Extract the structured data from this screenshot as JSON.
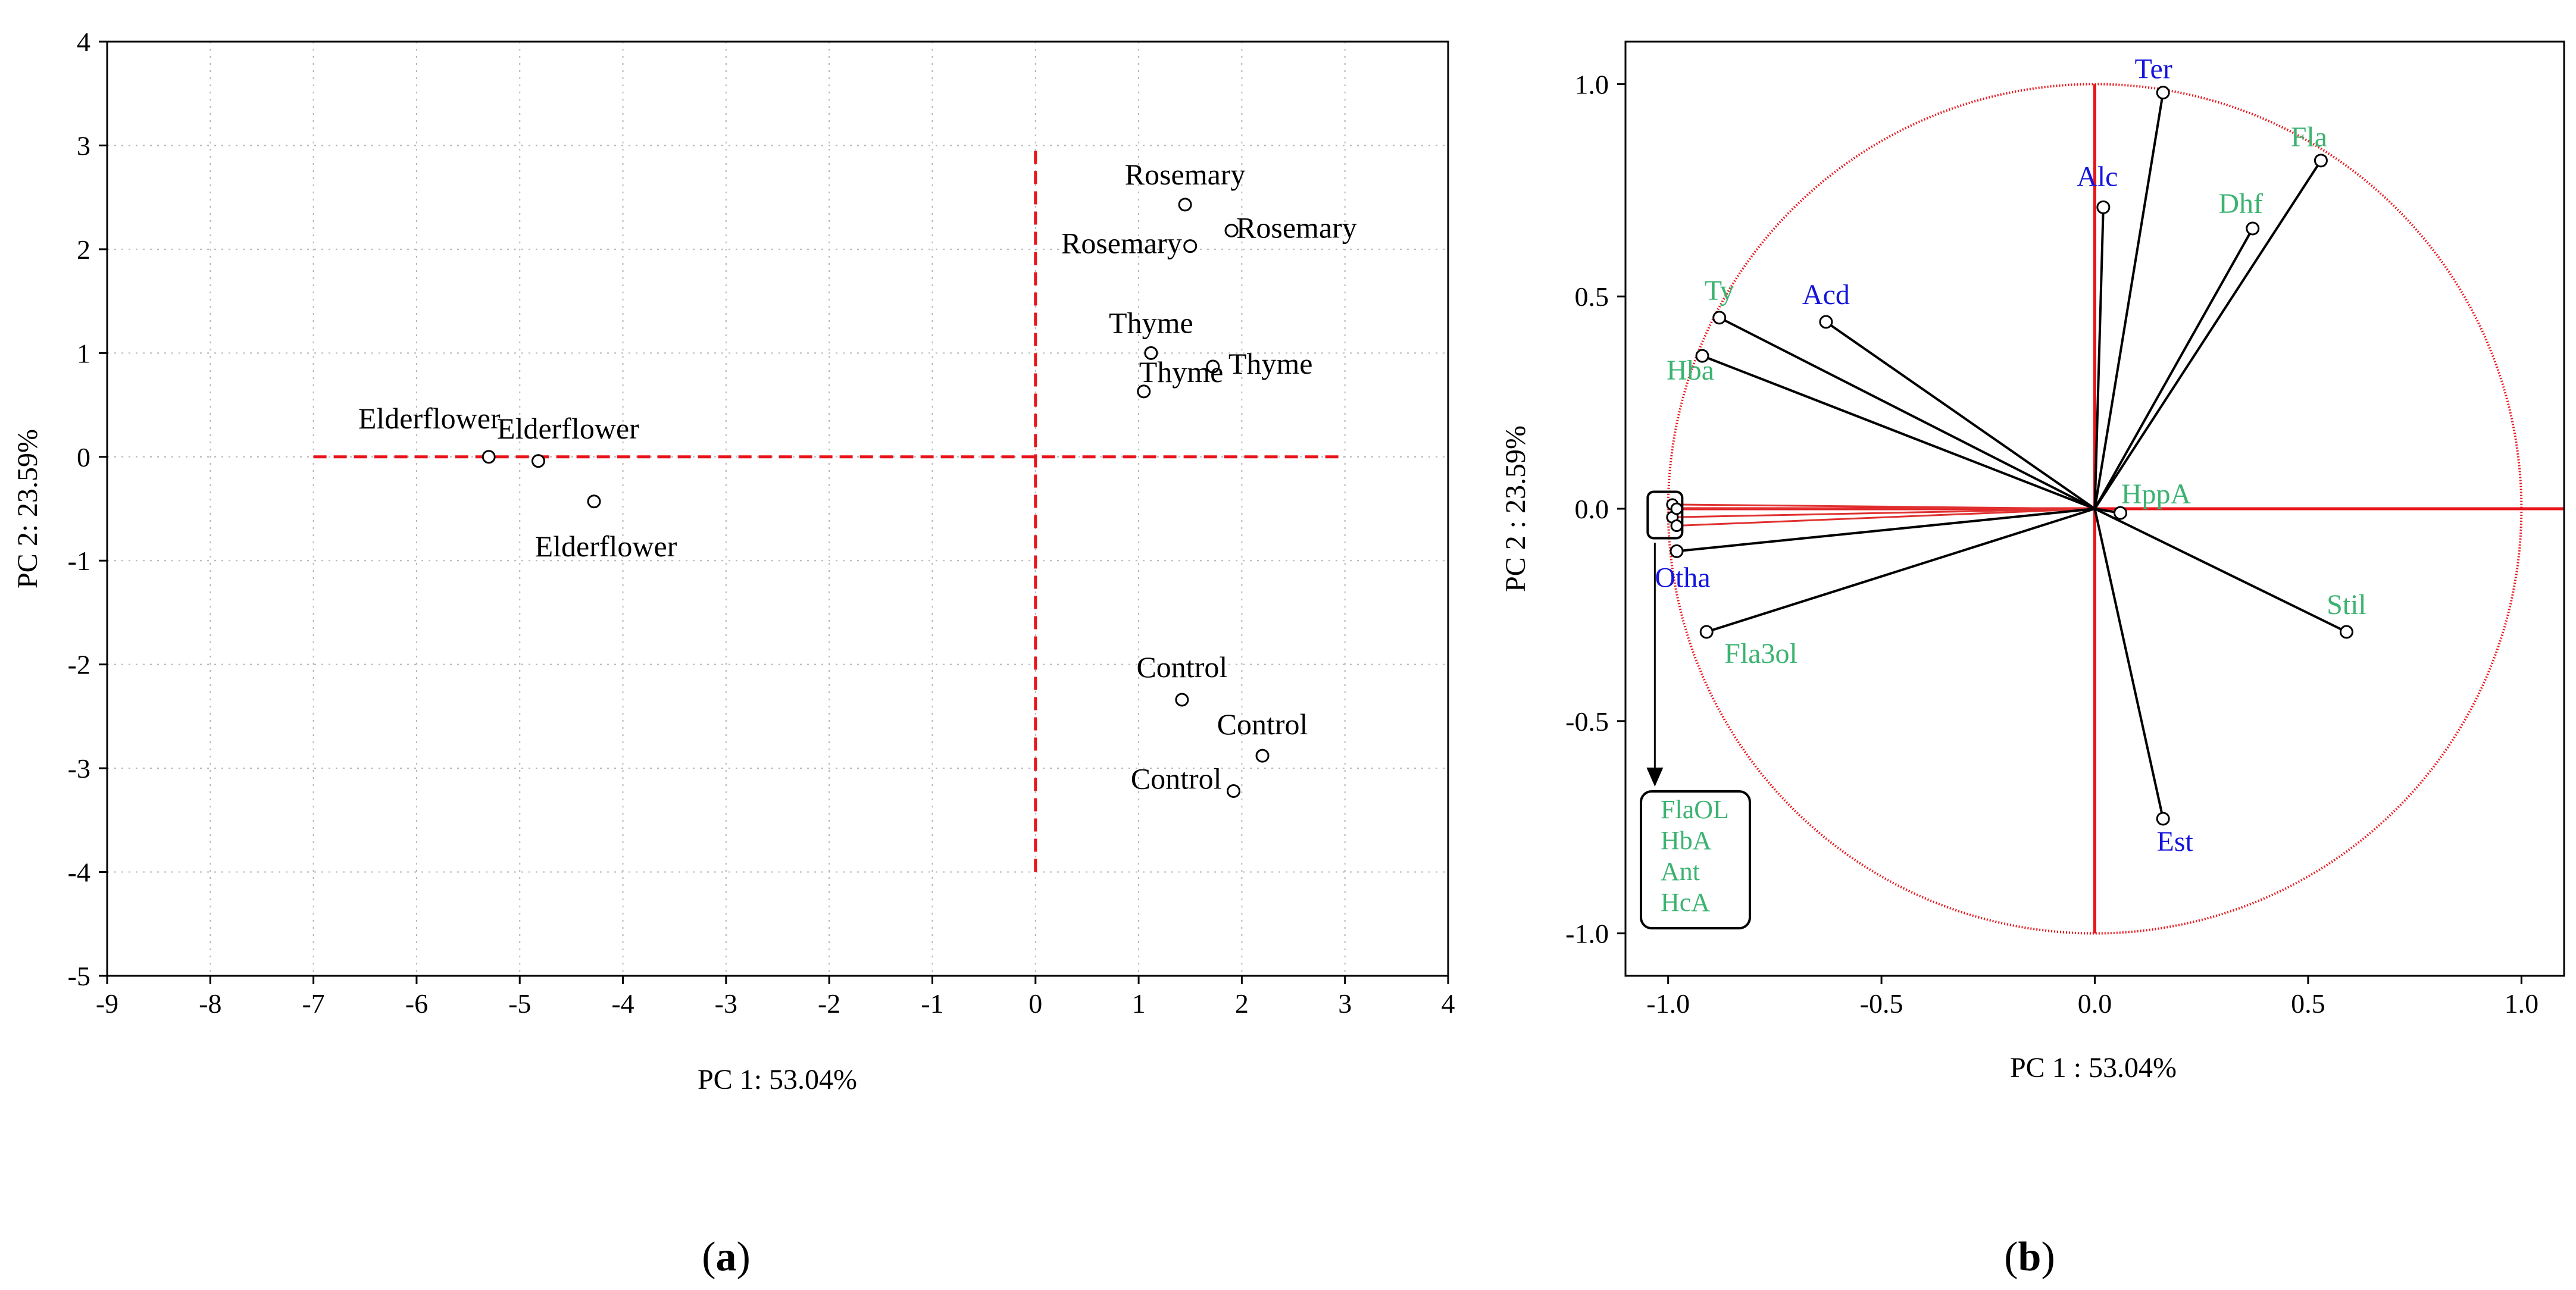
{
  "colors": {
    "ref_line": "#e8151b",
    "green_label": "#3cb371",
    "blue_label": "#1414dc",
    "point_stroke": "#000000"
  },
  "panel_labels": {
    "a": "a",
    "b": "b"
  },
  "chart_data": [
    {
      "type": "scatter",
      "title": "",
      "xlabel": "PC 1: 53.04%",
      "ylabel": "PC 2: 23.59%",
      "xlim": [
        -9,
        4
      ],
      "ylim": [
        -5,
        4
      ],
      "xticks": [
        -9,
        -8,
        -7,
        -6,
        -5,
        -4,
        -3,
        -2,
        -1,
        0,
        1,
        2,
        3,
        4
      ],
      "yticks": [
        -5,
        -4,
        -3,
        -2,
        -1,
        0,
        1,
        2,
        3,
        4
      ],
      "xtick_labels": [
        "-9",
        "-8",
        "-7",
        "-6",
        "-5",
        "-4",
        "-3",
        "-2",
        "-1",
        "0",
        "1",
        "2",
        "3",
        "4"
      ],
      "ytick_labels": [
        "-5",
        "-4",
        "-3",
        "-2",
        "-1",
        "0",
        "1",
        "2",
        "3",
        "4"
      ],
      "grid": true,
      "reference_lines": {
        "horizontal": {
          "y": 0,
          "x_from": -7,
          "x_to": 3
        },
        "vertical": {
          "x": 0,
          "y_from": -4,
          "y_to": 3
        }
      },
      "points": [
        {
          "label": "Rosemary",
          "x": 1.45,
          "y": 2.43
        },
        {
          "label": "Rosemary",
          "x": 1.9,
          "y": 2.18
        },
        {
          "label": "Rosemary",
          "x": 1.5,
          "y": 2.03
        },
        {
          "label": "Thyme",
          "x": 1.12,
          "y": 1.0
        },
        {
          "label": "Thyme",
          "x": 1.72,
          "y": 0.87
        },
        {
          "label": "Thyme",
          "x": 1.05,
          "y": 0.63
        },
        {
          "label": "Elderflower",
          "x": -5.3,
          "y": 0.0
        },
        {
          "label": "Elderflower",
          "x": -4.82,
          "y": -0.04
        },
        {
          "label": "Elderflower",
          "x": -4.28,
          "y": -0.43
        },
        {
          "label": "Control",
          "x": 1.42,
          "y": -2.34
        },
        {
          "label": "Control",
          "x": 2.2,
          "y": -2.88
        },
        {
          "label": "Control",
          "x": 1.92,
          "y": -3.22
        }
      ]
    },
    {
      "type": "scatter",
      "subtype": "loading_plot",
      "title": "",
      "xlabel": "PC 1 : 53.04%",
      "ylabel": "PC 2 : 23.59%",
      "xlim": [
        -1.1,
        1.1
      ],
      "ylim": [
        -1.1,
        1.1
      ],
      "xticks": [
        -1.0,
        -0.5,
        0.0,
        0.5,
        1.0
      ],
      "yticks": [
        -1.0,
        -0.5,
        0.0,
        0.5,
        1.0
      ],
      "xtick_labels": [
        "-1.0",
        "-0.5",
        "0.0",
        "0.5",
        "1.0"
      ],
      "ytick_labels": [
        "-1.0",
        "-0.5",
        "0.0",
        "0.5",
        "1.0"
      ],
      "grid": false,
      "unit_circle": true,
      "vectors": [
        {
          "label": "Ter",
          "x": 0.16,
          "y": 0.98,
          "color": "#1414dc"
        },
        {
          "label": "Fla",
          "x": 0.53,
          "y": 0.82,
          "color": "#3cb371"
        },
        {
          "label": "Alc",
          "x": 0.02,
          "y": 0.71,
          "color": "#1414dc"
        },
        {
          "label": "Dhf",
          "x": 0.37,
          "y": 0.66,
          "color": "#3cb371"
        },
        {
          "label": "Ty",
          "x": -0.88,
          "y": 0.45,
          "color": "#3cb371"
        },
        {
          "label": "Acd",
          "x": -0.63,
          "y": 0.44,
          "color": "#1414dc"
        },
        {
          "label": "Hba",
          "x": -0.92,
          "y": 0.36,
          "color": "#3cb371"
        },
        {
          "label": "HppA",
          "x": 0.06,
          "y": -0.01,
          "color": "#3cb371"
        },
        {
          "label": "Otha",
          "x": -0.98,
          "y": -0.1,
          "color": "#1414dc"
        },
        {
          "label": "Fla3ol",
          "x": -0.91,
          "y": -0.29,
          "color": "#3cb371"
        },
        {
          "label": "Stil",
          "x": 0.59,
          "y": -0.29,
          "color": "#3cb371"
        },
        {
          "label": "Est",
          "x": 0.16,
          "y": -0.73,
          "color": "#1414dc"
        }
      ],
      "clustered_vectors": [
        {
          "label": "FlaOL",
          "x": -0.99,
          "y": 0.01
        },
        {
          "label": "HbA",
          "x": -0.99,
          "y": -0.02
        },
        {
          "label": "Ant",
          "x": -0.98,
          "y": -0.04
        },
        {
          "label": "HcA",
          "x": -0.98,
          "y": 0.0
        }
      ],
      "callout_labels": [
        "FlaOL",
        "HbA",
        "Ant",
        "HcA"
      ]
    }
  ]
}
